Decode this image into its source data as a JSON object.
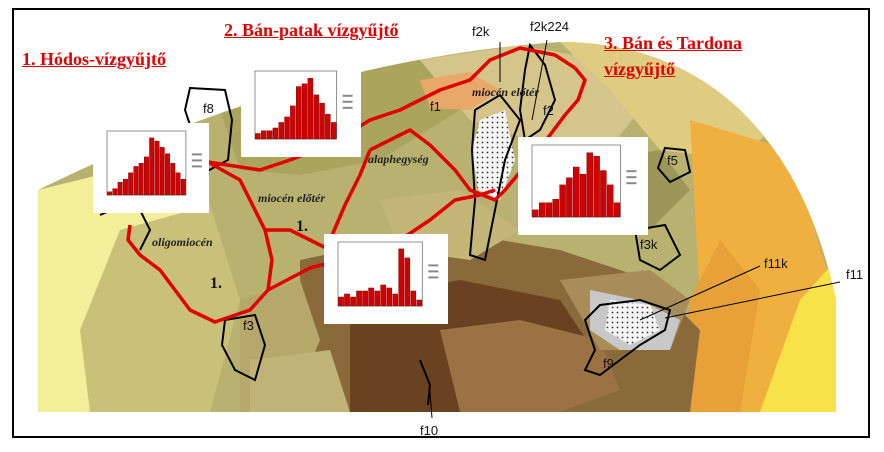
{
  "titles": {
    "hodos": "1. Hódos-vízgyűjtő",
    "ban_patak": "2. Bán-patak vízgyűjtő",
    "ban_tardona_1": "3. Bán és Tardona",
    "ban_tardona_2": "vízgyűjtő"
  },
  "labels": {
    "f8": "f8",
    "f2k": "f2k",
    "f2k224": "f2k224",
    "f1": "f1",
    "f2": "f2",
    "f5": "f5",
    "f3k": "f3k",
    "f11k": "f11k",
    "f11": "f11",
    "f3": "f3",
    "f9": "f9",
    "f10": "f10"
  },
  "zones": {
    "oligomiocen": "oligomiocén",
    "miocen_eloter_left": "miocén előtér",
    "miocen_eloter_right": "miocén előtér",
    "alaphegyseg": "alaphegység"
  },
  "numbers": {
    "one_a": "1.",
    "one_b": "1."
  },
  "colors": {
    "boundary": "#e00000",
    "bars": "#d00000",
    "light_yellow": "#f2ee9a",
    "olive": "#a9a25c",
    "tan": "#cdbb7e",
    "orange": "#f0b040",
    "brown": "#8a6a3a",
    "dark_brown": "#6a4222",
    "gray": "#c8c8c8"
  },
  "chart_data": [
    {
      "type": "bar",
      "title": "",
      "values": [
        1,
        2,
        4,
        5,
        7,
        9,
        10,
        12,
        18,
        17,
        15,
        13,
        10,
        7,
        5
      ]
    },
    {
      "type": "bar",
      "title": "",
      "values": [
        2,
        3,
        3,
        4,
        6,
        8,
        12,
        19,
        20,
        22,
        16,
        13,
        9,
        6
      ]
    },
    {
      "type": "bar",
      "title": "",
      "values": [
        2,
        4,
        4,
        5,
        9,
        11,
        14,
        12,
        18,
        17,
        13,
        9,
        4
      ]
    },
    {
      "type": "bar",
      "title": "",
      "values": [
        3,
        4,
        3,
        5,
        5,
        6,
        5,
        7,
        6,
        4,
        19,
        16,
        5,
        2
      ]
    }
  ]
}
